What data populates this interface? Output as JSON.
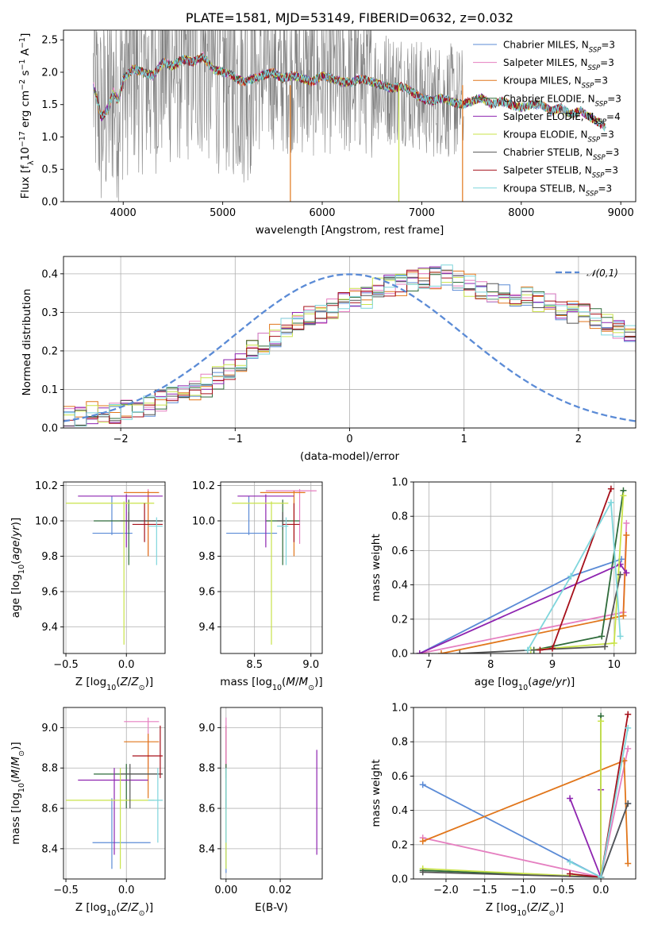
{
  "colors": {
    "Chabrier MILES": "#5b8bd6",
    "Salpeter MILES": "#e57fc0",
    "Kroupa MILES": "#e1761b",
    "Chabrier ELODIE": "#2e6b3a",
    "Salpeter ELODIE": "#8e24b0",
    "Kroupa ELODIE": "#c9e34a",
    "Chabrier STELIB": "#555555",
    "Salpeter STELIB": "#a6101a",
    "Kroupa STELIB": "#7fd6dc",
    "data": "#808080",
    "grid": "#b0b0b0"
  },
  "legend_labels": [
    {
      "name": "Chabrier MILES",
      "n": "3"
    },
    {
      "name": "Salpeter MILES",
      "n": "3"
    },
    {
      "name": "Kroupa MILES",
      "n": "3"
    },
    {
      "name": "Chabrier ELODIE",
      "n": "3"
    },
    {
      "name": "Salpeter ELODIE",
      "n": "4"
    },
    {
      "name": "Kroupa ELODIE",
      "n": "3"
    },
    {
      "name": "Chabrier STELIB",
      "n": "3"
    },
    {
      "name": "Salpeter STELIB",
      "n": "3"
    },
    {
      "name": "Kroupa STELIB",
      "n": "3"
    }
  ],
  "chart_data": [
    {
      "id": "spectrum",
      "type": "line",
      "title": "PLATE=1581, MJD=53149, FIBERID=0632, z=0.032",
      "xlabel": "wavelength [Angstrom, rest frame]",
      "ylabel": "Flux [f_λ 10^-17 erg cm^-2 s^-1 A^-1]",
      "xlim": [
        3400,
        9150
      ],
      "ylim": [
        0,
        2.65
      ],
      "xticks": [
        4000,
        5000,
        6000,
        7000,
        8000,
        9000
      ],
      "yticks": [
        0.0,
        0.5,
        1.0,
        1.5,
        2.0,
        2.5
      ],
      "data_range": [
        3700,
        7420
      ],
      "model_range": [
        3700,
        8850
      ],
      "model_curve": {
        "x": [
          3700,
          3780,
          3850,
          3900,
          3950,
          4000,
          4100,
          4200,
          4300,
          4400,
          4500,
          4600,
          4700,
          4800,
          4900,
          5000,
          5100,
          5200,
          5300,
          5400,
          5500,
          5600,
          5700,
          5800,
          5900,
          6000,
          6100,
          6200,
          6300,
          6400,
          6500,
          6600,
          6700,
          6800,
          6900,
          7000,
          7100,
          7200,
          7300,
          7400,
          7500,
          7600,
          7700,
          7800,
          7900,
          8000,
          8100,
          8200,
          8300,
          8400,
          8500,
          8600,
          8700,
          8800,
          8850
        ],
        "y": [
          1.8,
          1.3,
          1.45,
          1.7,
          1.55,
          1.9,
          2.05,
          2.0,
          1.95,
          2.15,
          2.1,
          2.2,
          2.15,
          2.25,
          2.05,
          2.0,
          1.95,
          1.85,
          1.9,
          1.95,
          2.0,
          1.9,
          1.95,
          1.9,
          1.85,
          1.95,
          1.9,
          1.85,
          1.85,
          1.9,
          1.85,
          1.8,
          1.75,
          1.78,
          1.7,
          1.6,
          1.55,
          1.6,
          1.55,
          1.5,
          1.55,
          1.6,
          1.5,
          1.55,
          1.5,
          1.45,
          1.5,
          1.5,
          1.4,
          1.45,
          1.35,
          1.4,
          1.3,
          1.2,
          1.15
        ]
      },
      "series_names": [
        "Chabrier MILES, N_SSP=3",
        "Salpeter MILES, N_SSP=3",
        "Kroupa MILES, N_SSP=3",
        "Chabrier ELODIE, N_SSP=3",
        "Salpeter ELODIE, N_SSP=4",
        "Kroupa ELODIE, N_SSP=3",
        "Chabrier STELIB, N_SSP=3",
        "Salpeter STELIB, N_SSP=3",
        "Kroupa STELIB, N_SSP=3"
      ]
    },
    {
      "id": "hist",
      "type": "bar",
      "xlabel": "(data-model)/error",
      "ylabel": "Normed distribution",
      "xlim": [
        -2.5,
        2.5
      ],
      "ylim": [
        0,
        0.445
      ],
      "xticks": [
        -2,
        -1,
        0,
        1,
        2
      ],
      "yticks": [
        0.0,
        0.1,
        0.2,
        0.3,
        0.4
      ],
      "legend": "𝒩(0,1)",
      "bin_width": 0.1,
      "bin_start": -2.5,
      "base_values": [
        0.03,
        0.03,
        0.04,
        0.04,
        0.04,
        0.05,
        0.05,
        0.06,
        0.07,
        0.08,
        0.09,
        0.1,
        0.11,
        0.13,
        0.15,
        0.17,
        0.2,
        0.22,
        0.24,
        0.26,
        0.28,
        0.29,
        0.3,
        0.31,
        0.33,
        0.34,
        0.34,
        0.36,
        0.37,
        0.37,
        0.38,
        0.39,
        0.39,
        0.4,
        0.38,
        0.37,
        0.36,
        0.35,
        0.35,
        0.34,
        0.34,
        0.33,
        0.32,
        0.3,
        0.3,
        0.3,
        0.28,
        0.27,
        0.26,
        0.24,
        0.22,
        0.2,
        0.18,
        0.17,
        0.16,
        0.14,
        0.13,
        0.12,
        0.1,
        0.09,
        0.08,
        0.07,
        0.07,
        0.06,
        0.05,
        0.05,
        0.04,
        0.04,
        0.03,
        0.03
      ]
    },
    {
      "id": "age_Z",
      "type": "scatter",
      "xlabel": "Z [log10(Z/Z⊙)]",
      "ylabel": "age [log10(age/yr)]",
      "xlim": [
        -0.52,
        0.32
      ],
      "ylim": [
        9.25,
        10.22
      ],
      "xticks": [
        -0.5,
        0.0
      ],
      "yticks": [
        9.4,
        9.6,
        9.8,
        10.0,
        10.2
      ],
      "points": [
        {
          "s": "Chabrier MILES",
          "x": -0.12,
          "y": 9.93,
          "xe": [
            -0.28,
            0.05
          ],
          "ye": [
            9.92,
            10.14
          ]
        },
        {
          "s": "Salpeter MILES",
          "x": 0.18,
          "y": 10.17,
          "xe": 0.0,
          "ye": [
            9.8,
            10.18
          ]
        },
        {
          "s": "Kroupa MILES",
          "x": 0.18,
          "y": 10.16,
          "xe": [
            -0.02,
            0.27
          ],
          "ye": [
            9.8,
            10.17
          ]
        },
        {
          "s": "Chabrier ELODIE",
          "x": 0.02,
          "y": 10.0,
          "xe": [
            -0.27,
            0.3
          ],
          "ye": [
            9.75,
            10.12
          ]
        },
        {
          "s": "Salpeter ELODIE",
          "x": 0.0,
          "y": 10.14,
          "xe": [
            -0.4,
            0.3
          ],
          "ye": [
            9.85,
            10.15
          ]
        },
        {
          "s": "Kroupa ELODIE",
          "x": -0.02,
          "y": 10.1,
          "xe": [
            -0.5,
            0.23
          ],
          "ye": [
            9.3,
            10.11
          ]
        },
        {
          "s": "Chabrier STELIB",
          "x": 0.02,
          "y": 10.0,
          "xe": [
            -0.05,
            0.3
          ],
          "ye": [
            9.95,
            10.05
          ]
        },
        {
          "s": "Salpeter STELIB",
          "x": 0.15,
          "y": 9.98,
          "xe": [
            0.05,
            0.3
          ],
          "ye": [
            9.88,
            10.1
          ]
        },
        {
          "s": "Kroupa STELIB",
          "x": 0.25,
          "y": 9.97,
          "xe": [
            0.18,
            0.3
          ],
          "ye": [
            9.75,
            10.02
          ]
        }
      ]
    },
    {
      "id": "age_mass",
      "type": "scatter",
      "xlabel": "mass [log10(M/M⊙)]",
      "ylabel": "",
      "xlim": [
        8.2,
        9.1
      ],
      "ylim": [
        9.25,
        10.22
      ],
      "xticks": [
        8.5,
        9.0
      ],
      "yticks": [
        9.4,
        9.6,
        9.8,
        10.0,
        10.2
      ],
      "points": [
        {
          "s": "Chabrier MILES",
          "x": 8.45,
          "y": 9.93,
          "xe": [
            8.25,
            8.7
          ],
          "ye": [
            9.92,
            10.14
          ]
        },
        {
          "s": "Salpeter MILES",
          "x": 8.9,
          "y": 10.17,
          "xe": [
            8.6,
            9.05
          ],
          "ye": [
            9.87,
            10.18
          ]
        },
        {
          "s": "Kroupa MILES",
          "x": 8.85,
          "y": 10.16,
          "xe": [
            8.55,
            8.95
          ],
          "ye": [
            9.8,
            10.17
          ]
        },
        {
          "s": "Chabrier ELODIE",
          "x": 8.75,
          "y": 10.0,
          "xe": [
            8.6,
            8.9
          ],
          "ye": [
            9.75,
            10.12
          ]
        },
        {
          "s": "Salpeter ELODIE",
          "x": 8.6,
          "y": 10.14,
          "xe": [
            8.35,
            8.85
          ],
          "ye": [
            9.85,
            10.15
          ]
        },
        {
          "s": "Kroupa ELODIE",
          "x": 8.65,
          "y": 10.1,
          "xe": [
            8.3,
            8.8
          ],
          "ye": [
            9.3,
            10.11
          ]
        },
        {
          "s": "Chabrier STELIB",
          "x": 8.75,
          "y": 10.0,
          "xe": [
            8.7,
            8.8
          ],
          "ye": [
            9.95,
            10.05
          ]
        },
        {
          "s": "Salpeter STELIB",
          "x": 8.85,
          "y": 9.98,
          "xe": [
            8.75,
            8.9
          ],
          "ye": [
            9.88,
            10.1
          ]
        },
        {
          "s": "Kroupa STELIB",
          "x": 8.78,
          "y": 9.97,
          "xe": [
            8.7,
            8.8
          ],
          "ye": [
            9.75,
            10.02
          ]
        }
      ]
    },
    {
      "id": "mw_age",
      "type": "line",
      "xlabel": "age [log10(age/yr)]",
      "ylabel": "mass weight",
      "xlim": [
        6.75,
        10.35
      ],
      "ylim": [
        0,
        1.0
      ],
      "xticks": [
        7,
        8,
        9,
        10
      ],
      "yticks": [
        0.0,
        0.2,
        0.4,
        0.6,
        0.8,
        1.0
      ],
      "series": [
        {
          "s": "Chabrier MILES",
          "x": [
            6.85,
            9.3,
            10.12
          ],
          "y": [
            0.0,
            0.45,
            0.55
          ]
        },
        {
          "s": "Salpeter MILES",
          "x": [
            6.85,
            10.15,
            10.2
          ],
          "y": [
            0.0,
            0.24,
            0.76
          ]
        },
        {
          "s": "Kroupa MILES",
          "x": [
            7.2,
            10.15,
            10.2
          ],
          "y": [
            0.0,
            0.22,
            0.69
          ]
        },
        {
          "s": "Chabrier ELODIE",
          "x": [
            8.7,
            9.8,
            10.15
          ],
          "y": [
            0.02,
            0.1,
            0.95
          ]
        },
        {
          "s": "Salpeter ELODIE",
          "x": [
            6.85,
            10.1,
            10.2
          ],
          "y": [
            0.0,
            0.52,
            0.47
          ]
        },
        {
          "s": "Kroupa ELODIE",
          "x": [
            8.65,
            10.0,
            10.15
          ],
          "y": [
            0.02,
            0.06,
            0.92
          ]
        },
        {
          "s": "Chabrier STELIB",
          "x": [
            7.5,
            9.85,
            10.1
          ],
          "y": [
            0.0,
            0.04,
            0.46
          ]
        },
        {
          "s": "Salpeter STELIB",
          "x": [
            8.8,
            9.0,
            9.95
          ],
          "y": [
            0.02,
            0.03,
            0.96
          ]
        },
        {
          "s": "Kroupa STELIB",
          "x": [
            8.6,
            9.3,
            9.95,
            10.1
          ],
          "y": [
            0.02,
            0.45,
            0.88,
            0.1
          ]
        }
      ]
    },
    {
      "id": "mass_Z",
      "type": "scatter",
      "xlabel": "Z [log10(Z/Z⊙)]",
      "ylabel": "mass [log10(M/M⊙)]",
      "xlim": [
        -0.52,
        0.32
      ],
      "ylim": [
        8.25,
        9.1
      ],
      "xticks": [
        -0.5,
        0.0
      ],
      "yticks": [
        8.4,
        8.6,
        8.8,
        9.0
      ],
      "points": [
        {
          "s": "Chabrier MILES",
          "x": -0.12,
          "y": 8.43,
          "xe": [
            -0.28,
            0.2
          ],
          "ye": [
            8.3,
            8.65
          ]
        },
        {
          "s": "Salpeter MILES",
          "x": 0.18,
          "y": 9.03,
          "xe": [
            -0.02,
            0.27
          ],
          "ye": [
            8.8,
            9.05
          ]
        },
        {
          "s": "Kroupa MILES",
          "x": 0.18,
          "y": 8.93,
          "xe": [
            -0.02,
            0.27
          ],
          "ye": [
            8.65,
            8.97
          ]
        },
        {
          "s": "Chabrier ELODIE",
          "x": 0.0,
          "y": 8.77,
          "xe": [
            -0.27,
            0.3
          ],
          "ye": [
            8.6,
            8.82
          ]
        },
        {
          "s": "Salpeter ELODIE",
          "x": -0.1,
          "y": 8.74,
          "xe": [
            -0.4,
            0.18
          ],
          "ye": [
            8.37,
            8.8
          ]
        },
        {
          "s": "Kroupa ELODIE",
          "x": -0.05,
          "y": 8.64,
          "xe": [
            -0.5,
            0.23
          ],
          "ye": [
            8.3,
            8.8
          ]
        },
        {
          "s": "Chabrier STELIB",
          "x": 0.03,
          "y": 8.77,
          "xe": [
            -0.05,
            0.3
          ],
          "ye": [
            8.6,
            8.82
          ]
        },
        {
          "s": "Salpeter STELIB",
          "x": 0.28,
          "y": 8.86,
          "xe": [
            0.05,
            0.3
          ],
          "ye": [
            8.75,
            9.01
          ]
        },
        {
          "s": "Kroupa STELIB",
          "x": 0.26,
          "y": 8.64,
          "xe": [
            0.18,
            0.3
          ],
          "ye": [
            8.43,
            8.8
          ]
        }
      ]
    },
    {
      "id": "mass_ebv",
      "type": "scatter",
      "xlabel": "E(B-V)",
      "ylabel": "",
      "xlim": [
        -0.002,
        0.0355
      ],
      "ylim": [
        8.25,
        9.1
      ],
      "xticks": [
        0.0,
        0.02
      ],
      "yticks": [
        8.4,
        8.6,
        8.8,
        9.0
      ],
      "points": [
        {
          "s": "Salpeter STELIB",
          "x": 0.0,
          "y": 8.86,
          "ye": [
            8.75,
            9.01
          ]
        },
        {
          "s": "Salpeter MILES",
          "x": 0.0,
          "y": 9.03,
          "ye": [
            8.8,
            9.05
          ]
        },
        {
          "s": "Chabrier MILES",
          "x": 0.0,
          "y": 8.43,
          "ye": [
            8.28,
            8.65
          ]
        },
        {
          "s": "Kroupa ELODIE",
          "x": 0.0,
          "y": 8.64,
          "ye": [
            8.3,
            8.8
          ]
        },
        {
          "s": "Chabrier ELODIE",
          "x": 0.0,
          "y": 8.77,
          "ye": [
            8.6,
            8.82
          ]
        },
        {
          "s": "Kroupa STELIB",
          "x": 0.0,
          "y": 8.64,
          "ye": [
            8.43,
            8.8
          ]
        },
        {
          "s": "Salpeter ELODIE",
          "x": 0.0335,
          "y": 8.6,
          "ye": [
            8.37,
            8.89
          ]
        }
      ]
    },
    {
      "id": "mw_Z",
      "type": "line",
      "xlabel": "Z [log10(Z/Z⊙)]",
      "ylabel": "mass weight",
      "xlim": [
        -2.42,
        0.45
      ],
      "ylim": [
        0,
        1.0
      ],
      "xticks": [
        -2.0,
        -1.5,
        -1.0,
        -0.5,
        0.0
      ],
      "yticks": [
        0.0,
        0.2,
        0.4,
        0.6,
        0.8,
        1.0
      ],
      "series": [
        {
          "s": "Chabrier MILES",
          "x": [
            -2.3,
            0.0,
            0.35
          ],
          "y": [
            0.55,
            0.01,
            0.44
          ]
        },
        {
          "s": "Salpeter MILES",
          "x": [
            -2.3,
            0.0,
            0.35
          ],
          "y": [
            0.24,
            0.01,
            0.76
          ]
        },
        {
          "s": "Kroupa MILES",
          "x": [
            -2.3,
            0.3,
            0.35
          ],
          "y": [
            0.22,
            0.69,
            0.09
          ]
        },
        {
          "s": "Chabrier ELODIE",
          "x": [
            -2.3,
            0.0,
            0.0
          ],
          "y": [
            0.05,
            0.01,
            0.95
          ]
        },
        {
          "s": "Salpeter ELODIE",
          "x": [
            -0.4,
            0.0,
            0.0
          ],
          "y": [
            0.47,
            0.01,
            0.52
          ]
        },
        {
          "s": "Kroupa ELODIE",
          "x": [
            -2.3,
            0.0,
            0.0
          ],
          "y": [
            0.06,
            0.01,
            0.92
          ]
        },
        {
          "s": "Chabrier STELIB",
          "x": [
            -2.3,
            0.0,
            0.35
          ],
          "y": [
            0.04,
            0.01,
            0.44
          ]
        },
        {
          "s": "Salpeter STELIB",
          "x": [
            -0.4,
            0.0,
            0.35
          ],
          "y": [
            0.03,
            0.01,
            0.96
          ]
        },
        {
          "s": "Kroupa STELIB",
          "x": [
            -0.4,
            0.0,
            0.35
          ],
          "y": [
            0.1,
            0.01,
            0.88
          ]
        }
      ]
    }
  ]
}
